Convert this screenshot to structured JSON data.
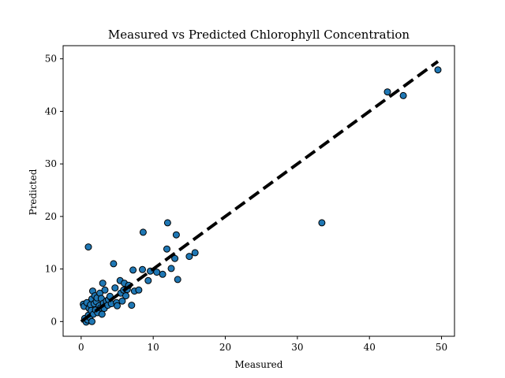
{
  "chart_data": {
    "type": "scatter",
    "title": "Measured vs Predicted Chlorophyll Concentration",
    "xlabel": "Measured",
    "ylabel": "Predicted",
    "xlim": [
      -2.5,
      51.8
    ],
    "ylim": [
      -2.8,
      52.5
    ],
    "xticks": [
      0,
      10,
      20,
      30,
      40,
      50
    ],
    "yticks": [
      0,
      10,
      20,
      30,
      40,
      50
    ],
    "grid": false,
    "point_color": "#1f77b4",
    "edge_color": "#000000",
    "reference_line": {
      "style": "dashed",
      "color": "#000000",
      "from": [
        0,
        0
      ],
      "to": [
        49.5,
        49.5
      ]
    },
    "points": [
      [
        0.3,
        3.3
      ],
      [
        0.4,
        2.9
      ],
      [
        0.5,
        0.6
      ],
      [
        0.7,
        -0.1
      ],
      [
        0.8,
        3.6
      ],
      [
        0.9,
        0.3
      ],
      [
        1.0,
        1.2
      ],
      [
        1.0,
        14.2
      ],
      [
        1.1,
        2.5
      ],
      [
        1.2,
        0.8
      ],
      [
        1.3,
        3.2
      ],
      [
        1.4,
        2.1
      ],
      [
        1.5,
        4.3
      ],
      [
        1.5,
        0.0
      ],
      [
        1.6,
        5.8
      ],
      [
        1.7,
        1.4
      ],
      [
        1.8,
        3.4
      ],
      [
        1.9,
        4.9
      ],
      [
        2.0,
        2.2
      ],
      [
        2.1,
        3.8
      ],
      [
        2.2,
        4.5
      ],
      [
        2.3,
        1.7
      ],
      [
        2.5,
        3.0
      ],
      [
        2.6,
        5.4
      ],
      [
        2.7,
        2.6
      ],
      [
        2.8,
        4.4
      ],
      [
        2.9,
        1.4
      ],
      [
        3.0,
        7.3
      ],
      [
        3.1,
        3.5
      ],
      [
        3.2,
        2.5
      ],
      [
        3.3,
        6.0
      ],
      [
        3.5,
        3.9
      ],
      [
        3.7,
        3.1
      ],
      [
        3.8,
        4.2
      ],
      [
        4.0,
        4.8
      ],
      [
        4.2,
        3.4
      ],
      [
        4.5,
        11.0
      ],
      [
        4.7,
        6.4
      ],
      [
        4.9,
        3.6
      ],
      [
        5.0,
        3.0
      ],
      [
        5.4,
        7.8
      ],
      [
        5.5,
        5.4
      ],
      [
        5.7,
        3.9
      ],
      [
        5.9,
        6.0
      ],
      [
        6.0,
        7.3
      ],
      [
        6.2,
        4.9
      ],
      [
        6.4,
        6.1
      ],
      [
        6.6,
        6.9
      ],
      [
        7.0,
        3.1
      ],
      [
        7.2,
        9.8
      ],
      [
        7.4,
        5.8
      ],
      [
        8.0,
        6.0
      ],
      [
        8.5,
        9.9
      ],
      [
        8.6,
        17.0
      ],
      [
        9.3,
        7.8
      ],
      [
        9.6,
        9.6
      ],
      [
        10.5,
        9.4
      ],
      [
        11.3,
        9.0
      ],
      [
        11.9,
        13.8
      ],
      [
        12.0,
        18.8
      ],
      [
        12.5,
        10.1
      ],
      [
        13.0,
        12.0
      ],
      [
        13.2,
        16.5
      ],
      [
        13.4,
        8.0
      ],
      [
        15.0,
        12.4
      ],
      [
        15.8,
        13.1
      ],
      [
        33.4,
        18.8
      ],
      [
        42.5,
        43.7
      ],
      [
        44.7,
        43.0
      ],
      [
        49.5,
        47.9
      ]
    ]
  }
}
